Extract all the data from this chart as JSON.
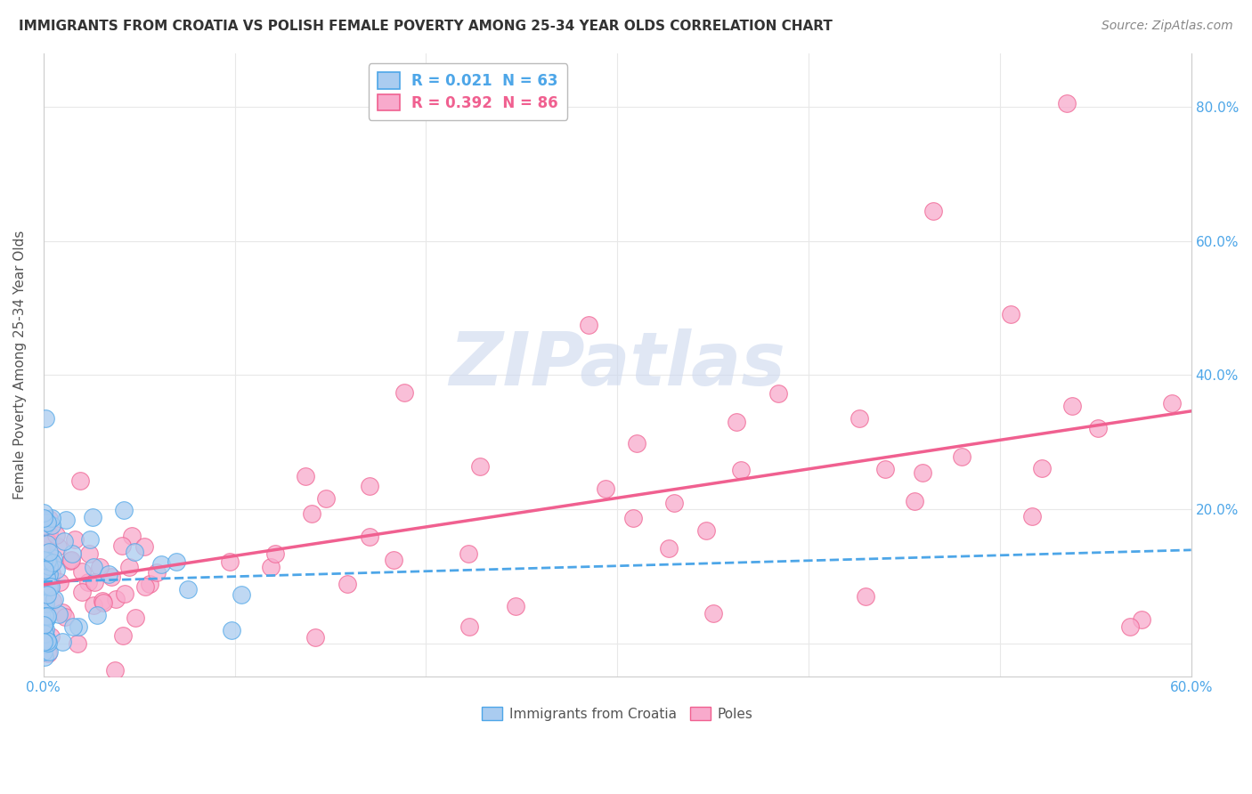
{
  "title": "IMMIGRANTS FROM CROATIA VS POLISH FEMALE POVERTY AMONG 25-34 YEAR OLDS CORRELATION CHART",
  "source": "Source: ZipAtlas.com",
  "ylabel": "Female Poverty Among 25-34 Year Olds",
  "xlim": [
    0.0,
    0.6
  ],
  "ylim": [
    -0.05,
    0.88
  ],
  "xticks": [
    0.0,
    0.1,
    0.2,
    0.3,
    0.4,
    0.5,
    0.6
  ],
  "xticklabels": [
    "0.0%",
    "",
    "",
    "",
    "",
    "",
    "60.0%"
  ],
  "yticks": [
    0.0,
    0.2,
    0.4,
    0.6,
    0.8
  ],
  "yticklabels_right": [
    "20.0%",
    "40.0%",
    "60.0%",
    "80.0%"
  ],
  "legend_entries": [
    {
      "label": "R = 0.021  N = 63",
      "color": "#4da6e8"
    },
    {
      "label": "R = 0.392  N = 86",
      "color": "#f06090"
    }
  ],
  "croatia_face": "#aaccf0",
  "croatia_edge": "#4da6e8",
  "poles_face": "#f8aacc",
  "poles_edge": "#f06090",
  "watermark": "ZIPatlas",
  "watermark_color": "#ccd8ee",
  "grid_color": "#e8e8e8",
  "background_color": "#ffffff",
  "croatia_line_color": "#4da6e8",
  "poles_line_color": "#f06090",
  "title_color": "#333333",
  "source_color": "#888888",
  "tick_color": "#4da6e8",
  "bottom_legend_color": "#555555"
}
